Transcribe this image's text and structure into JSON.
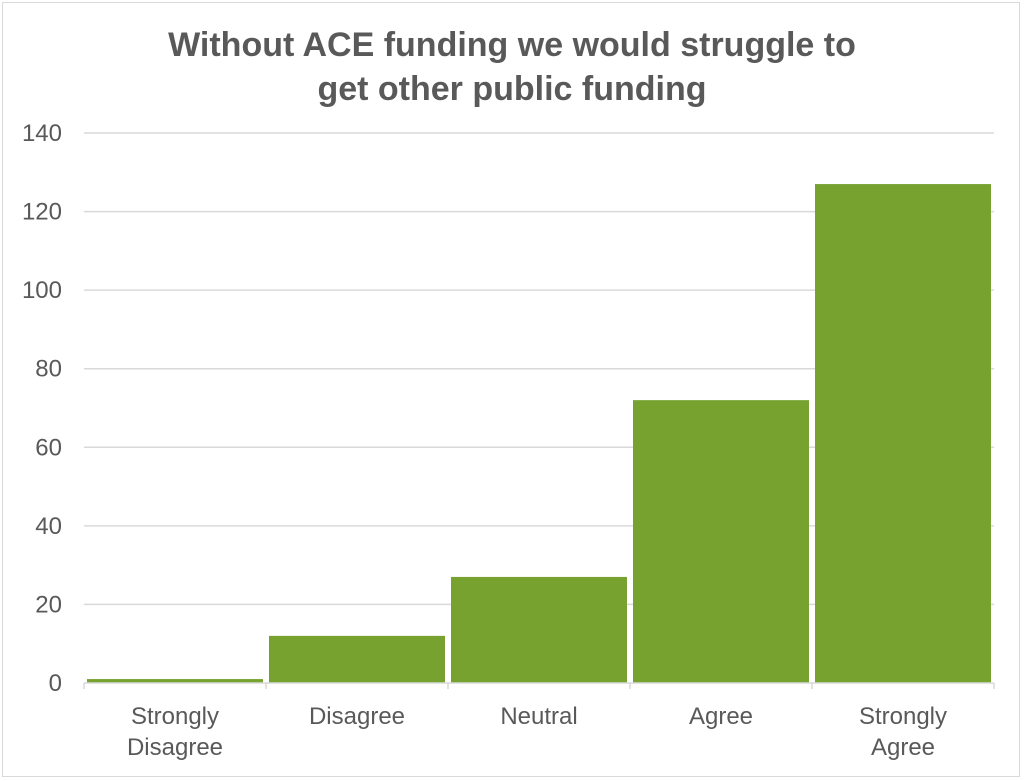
{
  "chart_data": {
    "type": "bar",
    "title": "Without ACE funding we would struggle to\nget other public funding",
    "categories": [
      "Strongly\nDisagree",
      "Disagree",
      "Neutral",
      "Agree",
      "Strongly\nAgree"
    ],
    "values": [
      1,
      12,
      27,
      72,
      127
    ],
    "ylim": [
      0,
      140
    ],
    "yticks": [
      0,
      20,
      40,
      60,
      80,
      100,
      120,
      140
    ],
    "grid": true,
    "bar_color": "#77a22f",
    "grid_color": "#d9d9d9",
    "text_color": "#595959"
  }
}
